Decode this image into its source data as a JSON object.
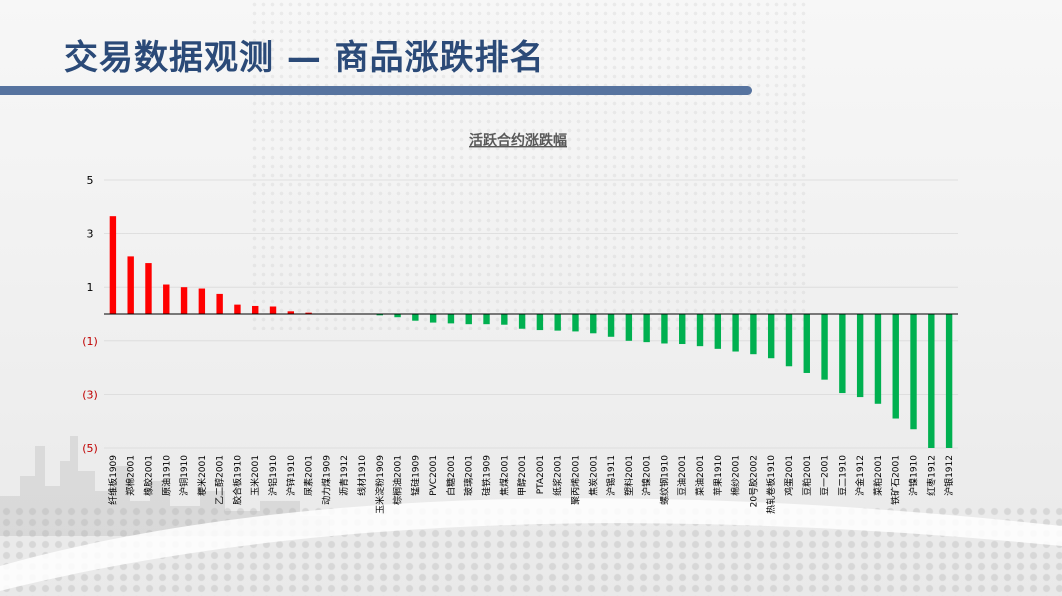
{
  "page": {
    "title": "交易数据观测 — 商品涨跌排名"
  },
  "chart_data": {
    "type": "bar",
    "title": "活跃合约涨跌幅",
    "xlabel": "",
    "ylabel": "",
    "ylim": [
      -5,
      5
    ],
    "grid": true,
    "legend": "none",
    "y_ticks": [
      5,
      3,
      1,
      -1,
      -3,
      -5
    ],
    "y_tick_labels": [
      "5",
      "3",
      "1",
      "(1)",
      "(3)",
      "(5)"
    ],
    "colors": {
      "up": "#ff0000",
      "down": "#00b050",
      "negative_label": "#c00000"
    },
    "categories": [
      "纤维板1909",
      "郑棉2001",
      "橡胶2001",
      "原油1910",
      "沪铜1910",
      "粳米2001",
      "乙二醇2001",
      "胶合板1910",
      "玉米2001",
      "沪铝1910",
      "沪锌1910",
      "尿素2001",
      "动力煤1909",
      "沥青1912",
      "线材1910",
      "玉米淀粉1909",
      "棕榈油2001",
      "锰硅1909",
      "PVC2001",
      "白糖2001",
      "玻璃2001",
      "硅铁1909",
      "焦煤2001",
      "甲醇2001",
      "PTA2001",
      "纸浆2001",
      "聚丙烯2001",
      "焦炭2001",
      "沪锡1911",
      "塑料2001",
      "沪镍2001",
      "螺纹钢1910",
      "豆油2001",
      "菜油2001",
      "苹果1910",
      "棉纱2001",
      "20号胶2002",
      "热轧卷板1910",
      "鸡蛋2001",
      "豆粕2001",
      "豆一2001",
      "豆二1910",
      "沪金1912",
      "菜粕2001",
      "铁矿石2001",
      "沪镍1910",
      "红枣1912",
      "沪银1912"
    ],
    "values": [
      3.65,
      2.15,
      1.9,
      1.1,
      1.0,
      0.95,
      0.75,
      0.35,
      0.3,
      0.28,
      0.1,
      0.05,
      0.0,
      0.0,
      0.0,
      -0.05,
      -0.12,
      -0.25,
      -0.32,
      -0.35,
      -0.38,
      -0.38,
      -0.4,
      -0.55,
      -0.6,
      -0.62,
      -0.65,
      -0.72,
      -0.85,
      -1.0,
      -1.05,
      -1.1,
      -1.12,
      -1.2,
      -1.3,
      -1.4,
      -1.5,
      -1.65,
      -1.95,
      -2.2,
      -2.45,
      -2.95,
      -3.1,
      -3.35,
      -3.9,
      -4.3,
      -5.0,
      -5.0
    ]
  }
}
